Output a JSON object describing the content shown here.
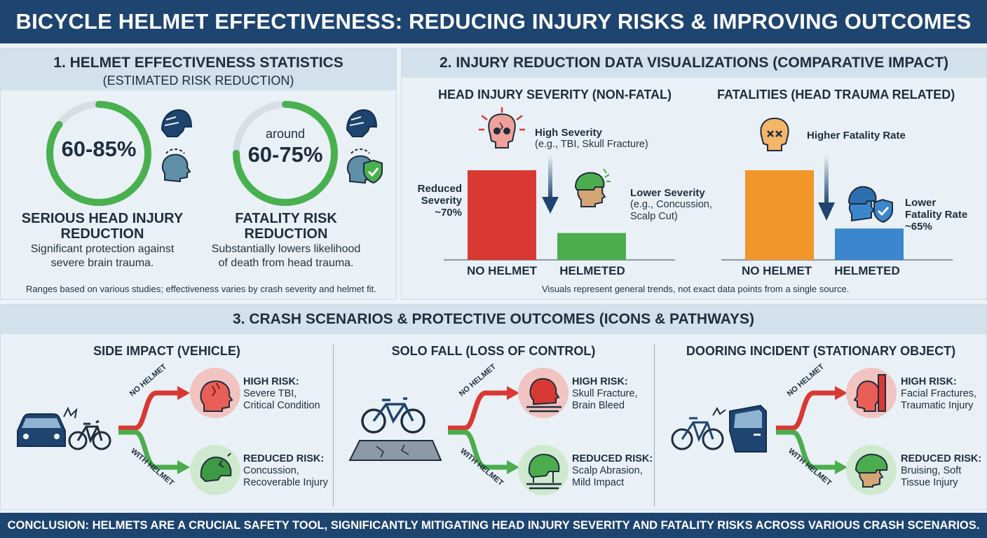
{
  "header": {
    "title": "BICYCLE HELMET EFFECTIVENESS: REDUCING INJURY RISKS & IMPROVING OUTCOMES"
  },
  "section1": {
    "title": "1. HELMET EFFECTIVENESS STATISTICS",
    "subtitle": "(ESTIMATED RISK REDUCTION)",
    "stat_head": {
      "value": "60-85%",
      "progress_fraction": 0.85,
      "title_line1": "SERIOUS HEAD INJURY",
      "title_line2": "REDUCTION",
      "desc_line1": "Significant protection against",
      "desc_line2": "severe brain trauma."
    },
    "stat_fatal": {
      "prefix": "around",
      "value": "60-75%",
      "progress_fraction": 0.75,
      "title_line1": "FATALITY RISK",
      "title_line2": "REDUCTION",
      "desc_line1": "Substantially lowers likelihood",
      "desc_line2": "of death from head trauma."
    },
    "note": "Ranges based on various studies; effectiveness varies by crash severity and helmet fit."
  },
  "section2": {
    "title": "2. INJURY REDUCTION DATA VISUALIZATIONS (COMPARATIVE IMPACT)",
    "note": "Visuals represent general trends, not exact data points from a single source.",
    "severity_title": "HEAD INJURY SEVERITY (NON-FATAL)",
    "high_severity_label": "High Severity",
    "high_severity_detail": "(e.g., TBI, Skull Fracture)",
    "lower_severity_label": "Lower Severity",
    "lower_severity_detail1": "(e.g., Concussion,",
    "lower_severity_detail2": "Scalp Cut)",
    "reduced_line1": "Reduced",
    "reduced_line2": "Severity",
    "reduced_line3": "~70%",
    "fatal_title": "FATALITIES (HEAD TRAUMA RELATED)",
    "higher_fatality_label": "Higher Fatality Rate",
    "lower_fatality_line1": "Lower",
    "lower_fatality_line2": "Fatality Rate",
    "lower_fatality_line3": "~65%"
  },
  "chart_data": [
    {
      "type": "bar",
      "title": "HEAD INJURY SEVERITY (NON-FATAL)",
      "categories": [
        "NO HELMET",
        "HELMETED"
      ],
      "values": [
        100,
        30
      ],
      "colors": [
        "#d83a33",
        "#4cad4f"
      ],
      "ylim": [
        0,
        100
      ]
    },
    {
      "type": "bar",
      "title": "FATALITIES (HEAD TRAUMA RELATED)",
      "categories": [
        "NO HELMET",
        "HELMETED"
      ],
      "values": [
        100,
        35
      ],
      "colors": [
        "#f0962b",
        "#3b86cc"
      ],
      "ylim": [
        0,
        100
      ]
    }
  ],
  "section3": {
    "title": "3. CRASH SCENARIOS & PROTECTIVE OUTCOMES (ICONS & PATHWAYS)",
    "path_no_helmet": "NO HELMET",
    "path_with_helmet": "WITH HELMET",
    "high_risk_label": "HIGH RISK:",
    "reduced_risk_label": "REDUCED RISK:",
    "scenarios": [
      {
        "title": "SIDE IMPACT (VEHICLE)",
        "high1": "Severe TBI,",
        "high2": "Critical Condition",
        "low1": "Concussion,",
        "low2": "Recoverable Injury"
      },
      {
        "title": "SOLO FALL (LOSS OF CONTROL)",
        "high1": "Skull Fracture,",
        "high2": "Brain Bleed",
        "low1": "Scalp Abrasion,",
        "low2": "Mild Impact"
      },
      {
        "title": "DOORING INCIDENT (STATIONARY OBJECT)",
        "high1": "Facial Fractures,",
        "high2": "Traumatic Injury",
        "low1": "Bruising, Soft",
        "low2": "Tissue Injury"
      }
    ]
  },
  "footer": {
    "conclusion": "CONCLUSION: HELMETS ARE A CRUCIAL SAFETY TOOL, SIGNIFICANTLY MITIGATING HEAD INJURY SEVERITY AND FATALITY RISKS ACROSS VARIOUS CRASH SCENARIOS."
  },
  "colors": {
    "navy": "#1e4470",
    "red": "#d83a33",
    "green": "#4cad4f",
    "orange": "#f0962b",
    "blue": "#3b86cc"
  }
}
